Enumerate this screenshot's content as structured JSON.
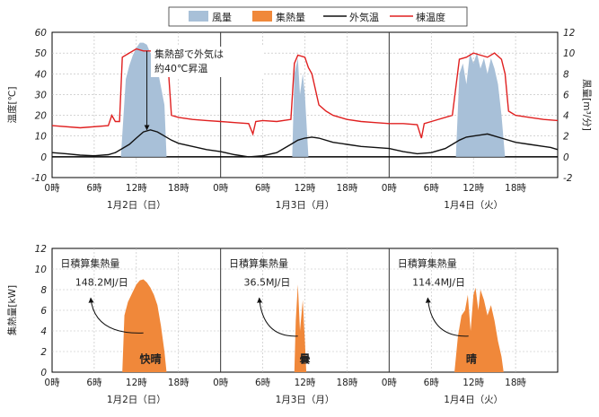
{
  "chart_data": [
    {
      "type": "line",
      "legend": {
        "placement": "top",
        "entries": [
          {
            "name": "風量",
            "kind": "area",
            "color": "#a8c0d8"
          },
          {
            "name": "集熱量",
            "kind": "area",
            "color": "#f0883a"
          },
          {
            "name": "外気温",
            "kind": "line",
            "color": "#111111"
          },
          {
            "name": "棟温度",
            "kind": "line",
            "color": "#e02020"
          }
        ]
      },
      "ylabel": "温度[℃]",
      "y2label": "風量[m³/分]",
      "ylim": [
        -10,
        60
      ],
      "y2lim": [
        -2,
        12
      ],
      "yticks": [
        "60",
        "50",
        "40",
        "30",
        "20",
        "10",
        "0",
        "-10"
      ],
      "y2ticks": [
        "12",
        "10",
        "8",
        "6",
        "4",
        "2",
        "0",
        "-2"
      ],
      "xlim_hours": [
        0,
        72
      ],
      "xticks": [
        "0時",
        "6時",
        "12時",
        "18時",
        "0時",
        "6時",
        "12時",
        "18時",
        "0時",
        "6時",
        "12時",
        "18時"
      ],
      "day_labels": [
        "1月2日（日）",
        "1月3日（月）",
        "1月4日（火）"
      ],
      "grid": true,
      "annotation": {
        "text": [
          "集熱部で外気は",
          "約40℃昇温"
        ],
        "at_hour": 13.5,
        "from_temp": 51,
        "to_temp": 13
      },
      "series": [
        {
          "name": "外気温",
          "axis": "left",
          "x": [
            0,
            2,
            4,
            6,
            8,
            9,
            10,
            11,
            12,
            13,
            14,
            15,
            16,
            17,
            18,
            20,
            22,
            24,
            26,
            28,
            30,
            32,
            33,
            34,
            35,
            36,
            37,
            38,
            40,
            42,
            44,
            46,
            48,
            50,
            52,
            54,
            56,
            57,
            58,
            59,
            60,
            61,
            62,
            63,
            64,
            66,
            68,
            70,
            71,
            72
          ],
          "values": [
            2,
            1.5,
            0.8,
            0.5,
            1,
            2,
            4,
            6,
            9,
            12,
            13,
            12,
            10,
            8,
            6.5,
            5,
            3.5,
            2.5,
            1,
            0,
            0.5,
            2,
            4,
            6,
            8,
            9,
            9.5,
            9,
            7,
            6,
            5,
            4.5,
            4,
            2.5,
            1.5,
            2,
            4,
            6,
            8,
            9.5,
            10,
            10.5,
            11,
            10,
            9,
            7,
            6,
            5,
            4.5,
            3.5
          ]
        },
        {
          "name": "棟温度",
          "axis": "left",
          "x": [
            0,
            4,
            8,
            8.5,
            9,
            9.6,
            10,
            11,
            12,
            13,
            14,
            15,
            16,
            16.5,
            17,
            18,
            20,
            22,
            24,
            26,
            28,
            28.6,
            29,
            30,
            32,
            34,
            34.5,
            35,
            36,
            36.5,
            37,
            38,
            39,
            40,
            42,
            44,
            46,
            48,
            50,
            52,
            52.6,
            53,
            54,
            57,
            58,
            59,
            60,
            61,
            62,
            63,
            64,
            64.5,
            65,
            66,
            68,
            70,
            72
          ],
          "values": [
            15,
            14,
            15,
            20,
            17,
            17,
            48,
            50,
            52,
            51,
            51,
            50,
            49,
            45,
            20,
            19,
            18,
            17.5,
            17,
            16.5,
            16,
            11,
            17,
            17.5,
            17,
            18,
            45,
            49,
            48,
            43,
            40,
            25,
            22,
            20,
            18,
            17,
            16.5,
            16,
            16,
            15.5,
            9,
            16,
            17,
            20,
            47,
            48,
            50,
            49,
            48,
            50,
            47,
            40,
            22,
            20,
            19,
            18,
            17.5
          ]
        },
        {
          "name": "風量",
          "axis": "right",
          "x": [
            9.8,
            10.5,
            11,
            11.5,
            12,
            12.5,
            13,
            13.5,
            14,
            15,
            16,
            16.3,
            34.2,
            34.5,
            35,
            35.3,
            35.7,
            36,
            36.5,
            57.5,
            58,
            58.5,
            59,
            59.5,
            60,
            60.5,
            61,
            61.5,
            62,
            62.5,
            63,
            63.5,
            64,
            64.5
          ],
          "values": [
            0,
            7.5,
            8.8,
            9.8,
            10.5,
            11,
            11,
            10.8,
            10,
            8.5,
            5,
            0,
            0,
            8,
            9.5,
            6,
            8,
            6,
            0,
            0,
            8,
            9,
            7,
            10,
            9,
            10,
            8.5,
            9.5,
            8,
            9.5,
            8.5,
            7,
            4,
            0
          ]
        }
      ]
    },
    {
      "type": "area",
      "ylabel": "集熱量[kW]",
      "ylim": [
        0,
        12
      ],
      "yticks": [
        "12",
        "10",
        "8",
        "6",
        "4",
        "2",
        "0"
      ],
      "xlim_hours": [
        0,
        72
      ],
      "xticks": [
        "0時",
        "6時",
        "12時",
        "18時",
        "0時",
        "6時",
        "12時",
        "18時",
        "0時",
        "6時",
        "12時",
        "18時"
      ],
      "day_labels": [
        "1月2日（日）",
        "1月3日（月）",
        "1月4日（火）"
      ],
      "grid": true,
      "series": [
        {
          "name": "集熱量",
          "x": [
            10,
            10.3,
            10.8,
            11.5,
            12,
            12.5,
            13,
            13.5,
            14,
            14.5,
            15,
            15.5,
            16,
            16.3,
            34.5,
            34.7,
            35,
            35.3,
            35.7,
            36,
            36.2,
            57.3,
            57.8,
            58.3,
            58.8,
            59.2,
            59.6,
            60,
            60.3,
            60.7,
            61,
            61.5,
            62,
            62.5,
            63,
            63.5,
            64,
            64.3
          ],
          "values": [
            0,
            5.5,
            6.8,
            7.8,
            8.5,
            8.9,
            9,
            8.7,
            8.2,
            7.5,
            6.5,
            4.5,
            2,
            0,
            0,
            5,
            8.5,
            4,
            7,
            3,
            0,
            0,
            3.5,
            5.5,
            6,
            7.5,
            4,
            7.5,
            8.2,
            6,
            8,
            7,
            5.5,
            6.5,
            5,
            3,
            1.5,
            0
          ]
        }
      ],
      "panels": [
        {
          "title": "日積算集熱量",
          "value": "148.2MJ/日",
          "weather": "快晴"
        },
        {
          "title": "日積算集熱量",
          "value": "36.5MJ/日",
          "weather": "曇"
        },
        {
          "title": "日積算集熱量",
          "value": "114.4MJ/日",
          "weather": "晴"
        }
      ]
    }
  ]
}
